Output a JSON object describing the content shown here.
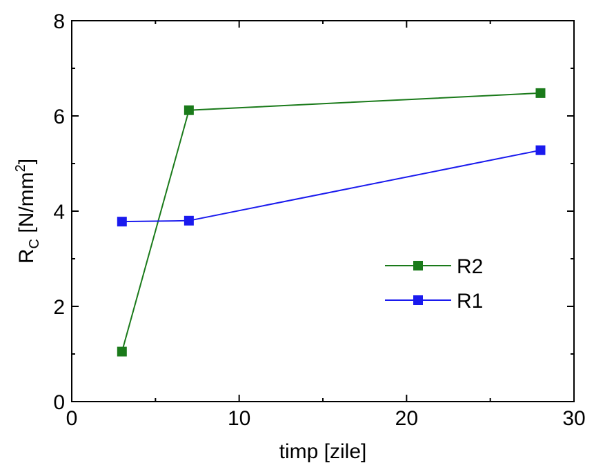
{
  "chart_data": {
    "type": "line",
    "xlabel": "timp [zile]",
    "ylabel": {
      "base": "R",
      "subscript": "C",
      "unit_prefix": " [N/mm",
      "superscript": "2",
      "unit_suffix": "]"
    },
    "xlim": [
      0,
      30
    ],
    "ylim": [
      0,
      8
    ],
    "xticks": [
      0,
      10,
      20,
      30
    ],
    "yticks": [
      0,
      2,
      4,
      6,
      8
    ],
    "grid": false,
    "legend_position": "right",
    "series": [
      {
        "name": "R2",
        "color": "#1a7a1a",
        "x": [
          3,
          7,
          28
        ],
        "y": [
          1.05,
          6.12,
          6.48
        ]
      },
      {
        "name": "R1",
        "color": "#1a1aee",
        "x": [
          3,
          7,
          28
        ],
        "y": [
          3.78,
          3.8,
          5.28
        ]
      }
    ]
  }
}
